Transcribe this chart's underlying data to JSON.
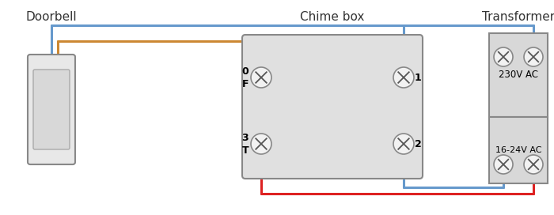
{
  "bg_color": "#ffffff",
  "title_doorbell": "Doorbell",
  "title_chime": "Chime box",
  "title_transformer": "Transformer",
  "title_fontsize": 11,
  "wire_blue": "#6699cc",
  "wire_orange": "#cc8833",
  "wire_red": "#dd2222",
  "wire_lw": 2.2,
  "box_fill_chime": "#e0e0e0",
  "box_fill_door": "#e8e8e8",
  "box_fill_trans": "#d8d8d8",
  "box_edge": "#888888",
  "label_230v": "230V AC",
  "label_1624v": "16-24V AC",
  "term_fill": "#f2f2f2",
  "term_edge": "#888888"
}
